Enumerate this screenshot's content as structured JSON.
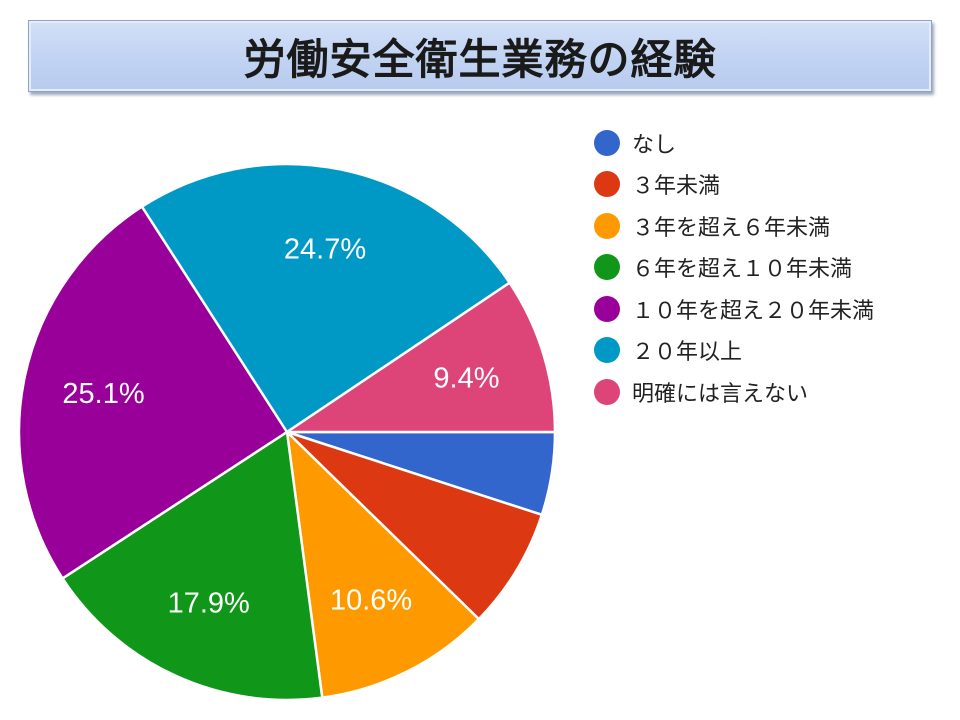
{
  "chart_data": {
    "type": "pie",
    "title": "労働安全衛生業務の経験",
    "start": "3 o'clock, clockwise",
    "legend_position": "right",
    "slices": [
      {
        "label": "なし",
        "value": 5.0,
        "color": "#3366cc",
        "show_label": false
      },
      {
        "label": "３年未満",
        "value": 7.3,
        "color": "#dc3912",
        "show_label": false
      },
      {
        "label": "３年を超え６年未満",
        "value": 10.6,
        "color": "#ff9900",
        "show_label": true
      },
      {
        "label": "６年を超え１０年未満",
        "value": 17.9,
        "color": "#109618",
        "show_label": true
      },
      {
        "label": "１０年を超え２０年未満",
        "value": 25.1,
        "color": "#990099",
        "show_label": true
      },
      {
        "label": "２０年以上",
        "value": 24.7,
        "color": "#0099c6",
        "show_label": true
      },
      {
        "label": "明確には言えない",
        "value": 9.4,
        "color": "#dd4477",
        "show_label": true
      }
    ]
  }
}
